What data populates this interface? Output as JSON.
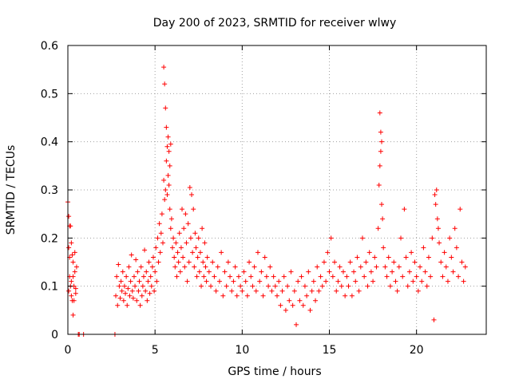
{
  "chart_data": {
    "type": "scatter",
    "title": "Day 200 of 2023, SRMTID for receiver wlwy",
    "xlabel": "GPS time / hours",
    "ylabel": "SRMTID / TECUs",
    "xlim": [
      0,
      24
    ],
    "ylim": [
      0,
      0.6
    ],
    "x_ticks": [
      0,
      5,
      10,
      15,
      20
    ],
    "x_tick_labels": [
      "0",
      "5",
      "10",
      "15",
      "20"
    ],
    "y_ticks": [
      0,
      0.1,
      0.2,
      0.3,
      0.4,
      0.5,
      0.6
    ],
    "y_tick_labels": [
      "0",
      "0.1",
      "0.2",
      "0.3",
      "0.4",
      "0.5",
      "0.6"
    ],
    "grid": true,
    "marker": "+",
    "marker_color": "#ff0000",
    "series": [
      {
        "name": "SRMTID",
        "x": [
          0.0,
          0.05,
          0.1,
          0.15,
          0.2,
          0.25,
          0.3,
          0.35,
          0.4,
          0.45,
          0.5,
          0.05,
          0.1,
          0.2,
          0.3,
          0.4,
          0.45,
          0.1,
          0.2,
          0.25,
          0.35,
          0.15,
          0.05,
          0.3,
          0.6,
          0.65,
          0.9,
          2.7,
          2.75,
          2.8,
          2.85,
          2.9,
          2.95,
          3.0,
          3.05,
          3.1,
          3.15,
          3.2,
          3.25,
          3.3,
          3.35,
          3.4,
          3.45,
          3.5,
          3.55,
          3.6,
          3.65,
          3.7,
          3.75,
          3.8,
          3.85,
          3.9,
          3.95,
          4.0,
          4.05,
          4.1,
          4.15,
          4.2,
          4.25,
          4.3,
          4.35,
          4.4,
          4.45,
          4.5,
          4.55,
          4.6,
          4.65,
          4.7,
          4.75,
          4.8,
          4.85,
          4.9,
          4.95,
          5.0,
          5.05,
          5.1,
          5.15,
          5.2,
          5.25,
          5.3,
          5.35,
          5.4,
          5.45,
          5.5,
          5.5,
          5.55,
          5.55,
          5.6,
          5.6,
          5.65,
          5.65,
          5.7,
          5.7,
          5.75,
          5.75,
          5.8,
          5.8,
          5.85,
          5.85,
          5.9,
          5.9,
          5.95,
          6.0,
          6.05,
          6.1,
          6.15,
          6.2,
          6.25,
          6.3,
          6.35,
          6.4,
          6.45,
          6.5,
          6.55,
          6.6,
          6.65,
          6.7,
          6.75,
          6.8,
          6.85,
          6.9,
          6.95,
          7.0,
          7.05,
          7.1,
          7.15,
          7.2,
          7.25,
          7.3,
          7.35,
          7.4,
          7.45,
          7.5,
          7.55,
          7.6,
          7.65,
          7.7,
          7.75,
          7.8,
          7.85,
          7.9,
          7.95,
          8.0,
          8.1,
          8.2,
          8.3,
          8.4,
          8.5,
          8.6,
          8.7,
          8.8,
          8.9,
          9.0,
          9.1,
          9.2,
          9.3,
          9.4,
          9.5,
          9.6,
          9.7,
          9.8,
          9.9,
          10.0,
          10.1,
          10.2,
          10.3,
          10.4,
          10.5,
          10.6,
          10.7,
          10.8,
          10.9,
          11.0,
          11.1,
          11.2,
          11.3,
          11.4,
          11.5,
          11.6,
          11.7,
          11.8,
          11.9,
          12.0,
          12.1,
          12.2,
          12.3,
          12.4,
          12.5,
          12.6,
          12.7,
          12.8,
          12.9,
          13.0,
          13.1,
          13.2,
          13.3,
          13.4,
          13.5,
          13.6,
          13.7,
          13.8,
          13.9,
          14.0,
          14.1,
          14.2,
          14.3,
          14.4,
          14.5,
          14.6,
          14.7,
          14.8,
          14.9,
          15.0,
          15.1,
          15.2,
          15.3,
          15.4,
          15.5,
          15.6,
          15.7,
          15.8,
          15.9,
          16.0,
          16.1,
          16.2,
          16.3,
          16.4,
          16.5,
          16.6,
          16.7,
          16.8,
          16.9,
          17.0,
          17.1,
          17.2,
          17.3,
          17.4,
          17.5,
          17.6,
          17.7,
          17.8,
          17.85,
          17.9,
          17.9,
          17.95,
          17.95,
          18.0,
          18.0,
          18.05,
          18.1,
          18.2,
          18.3,
          18.4,
          18.5,
          18.6,
          18.7,
          18.8,
          18.9,
          19.0,
          19.1,
          19.2,
          19.3,
          19.4,
          19.5,
          19.6,
          19.7,
          19.8,
          19.9,
          20.0,
          20.1,
          20.2,
          20.3,
          20.4,
          20.5,
          20.6,
          20.7,
          20.8,
          20.9,
          21.0,
          21.05,
          21.1,
          21.15,
          21.2,
          21.25,
          21.3,
          21.4,
          21.5,
          21.6,
          21.7,
          21.8,
          21.9,
          22.0,
          22.1,
          22.2,
          22.3,
          22.4,
          22.5,
          22.6,
          22.7,
          22.8
        ],
        "y": [
          0.275,
          0.09,
          0.16,
          0.225,
          0.19,
          0.07,
          0.12,
          0.1,
          0.13,
          0.085,
          0.14,
          0.18,
          0.12,
          0.08,
          0.04,
          0.17,
          0.095,
          0.225,
          0.11,
          0.165,
          0.07,
          0.1,
          0.245,
          0.15,
          0.0,
          0.0,
          0.0,
          0.0,
          0.08,
          0.12,
          0.06,
          0.145,
          0.1,
          0.075,
          0.11,
          0.09,
          0.13,
          0.07,
          0.1,
          0.085,
          0.12,
          0.06,
          0.095,
          0.14,
          0.08,
          0.11,
          0.165,
          0.09,
          0.075,
          0.12,
          0.1,
          0.155,
          0.07,
          0.13,
          0.09,
          0.11,
          0.06,
          0.14,
          0.08,
          0.1,
          0.12,
          0.175,
          0.09,
          0.13,
          0.07,
          0.11,
          0.15,
          0.085,
          0.12,
          0.1,
          0.14,
          0.16,
          0.09,
          0.13,
          0.18,
          0.11,
          0.2,
          0.15,
          0.23,
          0.17,
          0.21,
          0.25,
          0.19,
          0.555,
          0.32,
          0.52,
          0.28,
          0.47,
          0.3,
          0.43,
          0.36,
          0.39,
          0.29,
          0.41,
          0.33,
          0.38,
          0.31,
          0.35,
          0.26,
          0.395,
          0.22,
          0.24,
          0.18,
          0.2,
          0.16,
          0.14,
          0.19,
          0.12,
          0.17,
          0.15,
          0.21,
          0.13,
          0.18,
          0.26,
          0.16,
          0.22,
          0.14,
          0.25,
          0.19,
          0.11,
          0.23,
          0.15,
          0.305,
          0.2,
          0.29,
          0.17,
          0.26,
          0.14,
          0.21,
          0.18,
          0.12,
          0.16,
          0.2,
          0.13,
          0.17,
          0.1,
          0.22,
          0.15,
          0.12,
          0.19,
          0.14,
          0.11,
          0.16,
          0.13,
          0.1,
          0.15,
          0.12,
          0.09,
          0.14,
          0.11,
          0.17,
          0.08,
          0.13,
          0.1,
          0.15,
          0.12,
          0.09,
          0.11,
          0.14,
          0.08,
          0.12,
          0.1,
          0.09,
          0.13,
          0.11,
          0.08,
          0.15,
          0.12,
          0.1,
          0.14,
          0.09,
          0.17,
          0.11,
          0.13,
          0.08,
          0.16,
          0.12,
          0.1,
          0.14,
          0.09,
          0.12,
          0.1,
          0.08,
          0.11,
          0.06,
          0.09,
          0.12,
          0.05,
          0.1,
          0.07,
          0.13,
          0.06,
          0.09,
          0.02,
          0.11,
          0.07,
          0.12,
          0.06,
          0.1,
          0.08,
          0.13,
          0.05,
          0.09,
          0.11,
          0.07,
          0.14,
          0.09,
          0.12,
          0.1,
          0.15,
          0.11,
          0.17,
          0.13,
          0.2,
          0.12,
          0.15,
          0.09,
          0.11,
          0.14,
          0.1,
          0.13,
          0.08,
          0.12,
          0.1,
          0.15,
          0.08,
          0.13,
          0.11,
          0.16,
          0.09,
          0.14,
          0.2,
          0.12,
          0.15,
          0.1,
          0.17,
          0.13,
          0.11,
          0.16,
          0.14,
          0.22,
          0.31,
          0.46,
          0.35,
          0.42,
          0.38,
          0.4,
          0.27,
          0.24,
          0.18,
          0.14,
          0.12,
          0.16,
          0.1,
          0.13,
          0.15,
          0.11,
          0.09,
          0.14,
          0.2,
          0.12,
          0.26,
          0.16,
          0.1,
          0.13,
          0.17,
          0.11,
          0.15,
          0.12,
          0.09,
          0.14,
          0.11,
          0.18,
          0.13,
          0.1,
          0.16,
          0.12,
          0.2,
          0.03,
          0.29,
          0.27,
          0.3,
          0.24,
          0.22,
          0.19,
          0.15,
          0.12,
          0.17,
          0.14,
          0.11,
          0.2,
          0.16,
          0.13,
          0.22,
          0.18,
          0.12,
          0.26,
          0.15,
          0.11,
          0.14
        ]
      }
    ]
  }
}
